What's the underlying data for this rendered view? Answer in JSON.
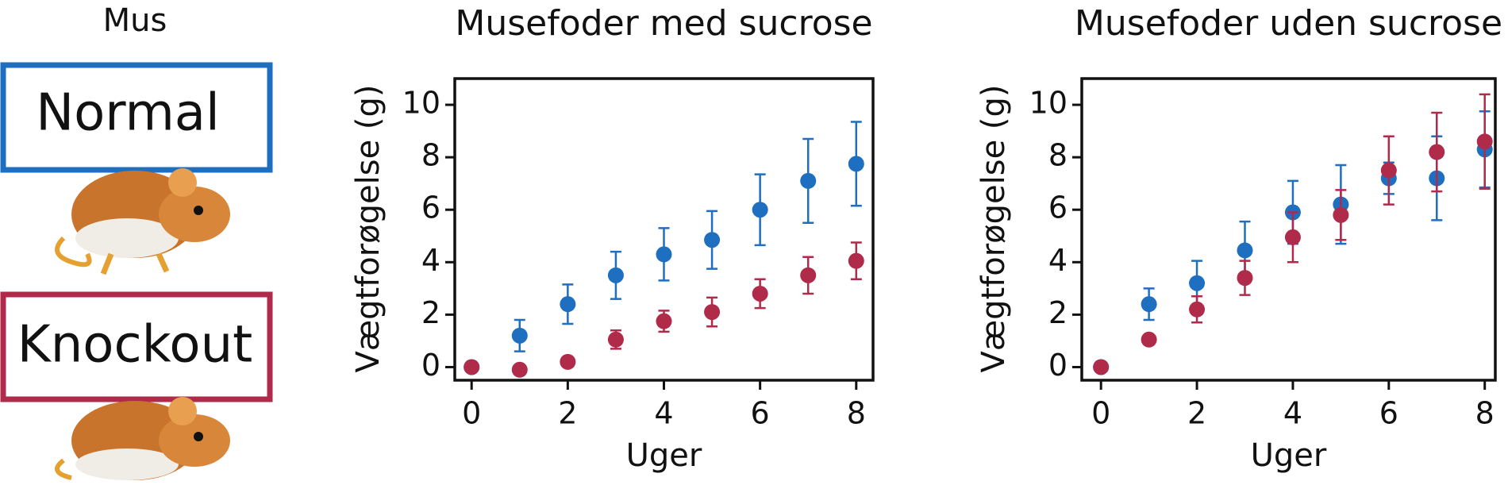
{
  "legend_title": "Mus",
  "chart_data": [
    {
      "type": "scatter",
      "title": "Musefoder med sucrose",
      "x_label": "Uger",
      "y_label": "Vægtforøgelse (g)",
      "x": [
        0,
        1,
        2,
        3,
        4,
        5,
        6,
        7,
        8
      ],
      "series": [
        {
          "name": "Normal",
          "color": "#1f6fc0",
          "values": [
            0,
            1.2,
            2.4,
            3.5,
            4.3,
            4.85,
            6.0,
            7.1,
            7.75
          ],
          "errors": [
            0,
            0.6,
            0.75,
            0.9,
            1.0,
            1.1,
            1.35,
            1.6,
            1.6
          ]
        },
        {
          "name": "Knockout",
          "color": "#b02a4a",
          "values": [
            0,
            -0.1,
            0.2,
            1.05,
            1.75,
            2.1,
            2.8,
            3.5,
            4.05
          ],
          "errors": [
            0,
            0,
            0,
            0.35,
            0.4,
            0.55,
            0.55,
            0.7,
            0.7
          ]
        }
      ],
      "xlim": [
        -0.35,
        8.35
      ],
      "ylim": [
        -0.5,
        11
      ],
      "xticks": [
        0,
        2,
        4,
        6,
        8
      ],
      "yticks": [
        0,
        2,
        4,
        6,
        8,
        10
      ]
    },
    {
      "type": "scatter",
      "title": "Musefoder uden sucrose",
      "x_label": "Uger",
      "y_label": "Vægtforøgelse (g)",
      "x": [
        0,
        1,
        2,
        3,
        4,
        5,
        6,
        7,
        8
      ],
      "series": [
        {
          "color": "#1f6fc0",
          "values": [
            0,
            2.4,
            3.2,
            4.45,
            5.9,
            6.2,
            7.2,
            7.2,
            8.3
          ],
          "errors": [
            0,
            0.6,
            0.85,
            1.1,
            1.2,
            1.5,
            0.6,
            1.6,
            1.45
          ]
        },
        {
          "color": "#b02a4a",
          "values": [
            0,
            1.05,
            2.2,
            3.4,
            4.95,
            5.8,
            7.5,
            8.2,
            8.6
          ],
          "errors": [
            0,
            0,
            0.5,
            0.65,
            0.95,
            0.95,
            1.3,
            1.5,
            1.8
          ]
        }
      ],
      "xlim": [
        -0.4,
        8.22
      ],
      "ylim": [
        -0.5,
        11
      ],
      "xticks": [
        0,
        2,
        4,
        6,
        8
      ],
      "yticks": [
        0,
        2,
        4,
        6,
        8,
        10
      ]
    }
  ]
}
